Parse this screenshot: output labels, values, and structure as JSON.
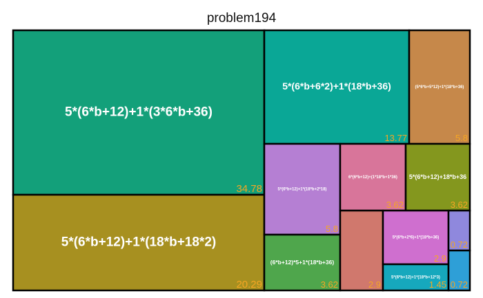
{
  "chart_data": {
    "type": "treemap",
    "title": "problem194",
    "items": [
      {
        "label": "5*(6*b+12)+1*(3*6*b+36)",
        "value": 34.78,
        "value_text": "34.78",
        "color": "#13a07a"
      },
      {
        "label": "5*(6*b+12)+1*(18*b+18*2)",
        "value": 20.29,
        "value_text": "20.29",
        "color": "#a79020"
      },
      {
        "label": "5*(6*b+6*2)+1*(18*b+36)",
        "value": 13.77,
        "value_text": "13.77",
        "color": "#0aa796"
      },
      {
        "label": "(5*6*b+5*12)+1*(18*b+36)",
        "value": 5.8,
        "value_text": "5.8",
        "color": "#c6884a"
      },
      {
        "label": "5*(6*b+12)+1*(18*b+2*18)",
        "value": 5.8,
        "value_text": "5.8",
        "color": "#b57fd3"
      },
      {
        "label": "6*(6*b+12)+(1*18*b+1*36)",
        "value": 3.62,
        "value_text": "3.62",
        "color": "#d8759a"
      },
      {
        "label": "5*(6*b+12)+18*b+36",
        "value": 3.62,
        "value_text": "3.62",
        "color": "#84971e"
      },
      {
        "label": "(6*b+12)*5+1*(18*b+36)",
        "value": 3.62,
        "value_text": "3.62",
        "color": "#4fa64c"
      },
      {
        "label": "",
        "value": 2.9,
        "value_text": "2.9",
        "color": "#d0786d"
      },
      {
        "label": "5*(6*b+2*6)+1*(18*b+36)",
        "value": 2.9,
        "value_text": "2.9",
        "color": "#cf6fcf"
      },
      {
        "label": "",
        "value": 0.72,
        "value_text": "0.72",
        "color": "#8f88dd"
      },
      {
        "label": "5*(6*b+12)+1*(18*b+12*3)",
        "value": 1.45,
        "value_text": "1.45",
        "color": "#16a8bd"
      },
      {
        "label": "",
        "value": 0.72,
        "value_text": "0.72",
        "color": "#2e9fd7"
      }
    ]
  }
}
